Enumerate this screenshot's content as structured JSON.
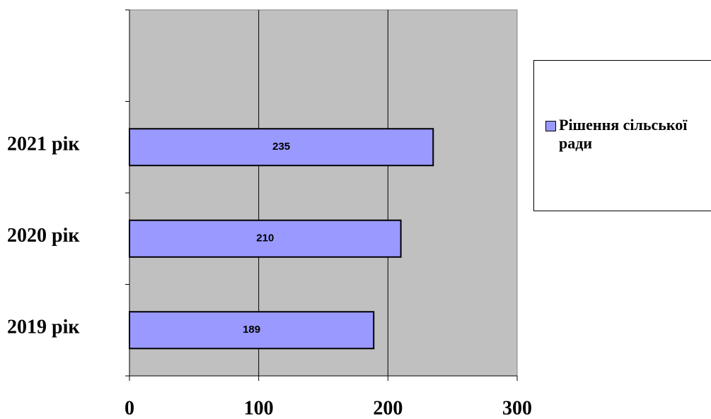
{
  "chart_data": {
    "type": "bar",
    "categories": [
      "2019 рік",
      "2020 рік",
      "2021 рік",
      null
    ],
    "series": [
      {
        "name": "Рішення сільської ради",
        "color": "#9999ff",
        "values": [
          189,
          210,
          235,
          null
        ]
      }
    ],
    "xlim": [
      0,
      300
    ],
    "xticks": [
      0,
      100,
      200,
      300
    ],
    "grid": true
  }
}
